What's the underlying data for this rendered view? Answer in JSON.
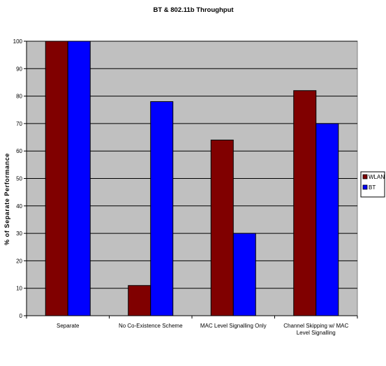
{
  "chart_data": {
    "type": "bar",
    "title": "BT & 802.11b Throughput",
    "xlabel": "",
    "ylabel": "% of Separate Performance",
    "categories": [
      [
        "Separate"
      ],
      [
        "No Co-Existence Scheme"
      ],
      [
        "MAC Level Signalling Only"
      ],
      [
        "Channel Skipping w/ MAC",
        "Level Signalling"
      ]
    ],
    "series": [
      {
        "name": "WLAN",
        "color": "#800000",
        "values": [
          100,
          11,
          64,
          82
        ]
      },
      {
        "name": "BT",
        "color": "#0000ff",
        "values": [
          100,
          78,
          30,
          70
        ]
      }
    ],
    "ylim": [
      0,
      100
    ],
    "yticks": [
      0,
      10,
      20,
      30,
      40,
      50,
      60,
      70,
      80,
      90,
      100
    ],
    "grid": true,
    "plot_background": "#c0c0c0",
    "legend_position": "right"
  }
}
